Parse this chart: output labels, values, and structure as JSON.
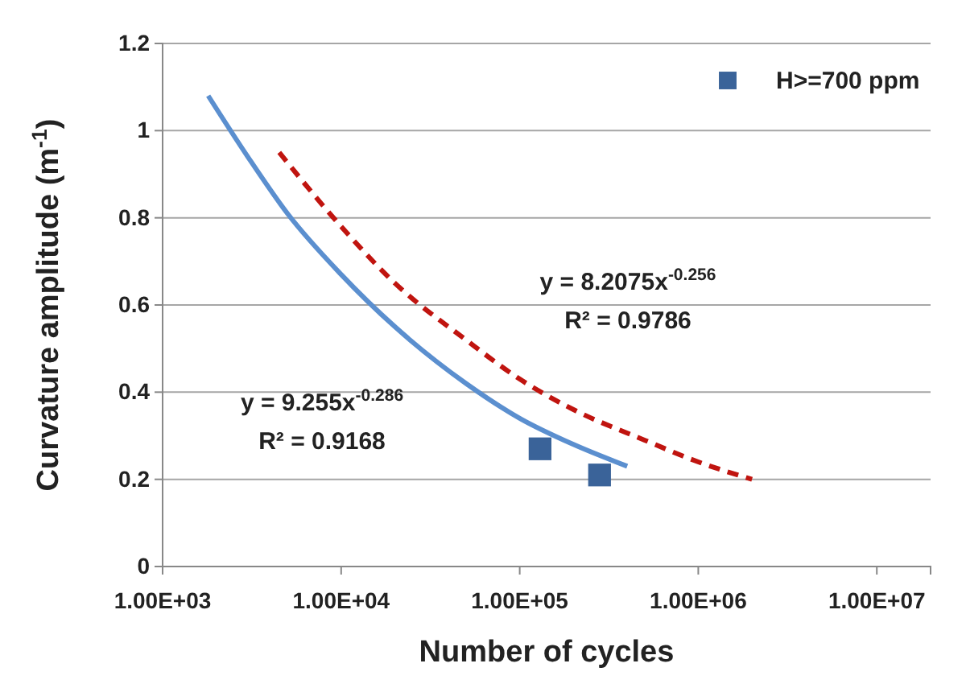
{
  "chart_data": {
    "type": "scatter",
    "xlabel": "Number of cycles",
    "ylabel": "Curvature amplitude (m$^{-1}$)",
    "log": "x",
    "xlim": [
      1000,
      20000000
    ],
    "xticks": [
      {
        "value": 1000,
        "label": "1.00E+03"
      },
      {
        "value": 10000,
        "label": "1.00E+04"
      },
      {
        "value": 100000,
        "label": "1.00E+05"
      },
      {
        "value": 1000000,
        "label": "1.00E+06"
      },
      {
        "value": 10000000,
        "label": "1.00E+07"
      }
    ],
    "ylim": [
      0,
      1.2
    ],
    "yticks": [
      0,
      0.2,
      0.4,
      0.6,
      0.8,
      1,
      1.2
    ],
    "grid": "y",
    "legend": "top right",
    "series": [
      {
        "name": "H>=700 ppm",
        "type": "scatter",
        "marker": "square",
        "color": "#3a6399",
        "x": [
          130000,
          280000
        ],
        "values": [
          0.27,
          0.21
        ]
      },
      {
        "type": "line",
        "marker": "none",
        "line_style": "solid",
        "color": "#5b8fcf",
        "x": [
          1800,
          3000,
          5000,
          10000,
          20000,
          50000,
          100000,
          200000,
          400000
        ],
        "values": [
          1.08,
          0.94,
          0.81,
          0.67,
          0.55,
          0.42,
          0.34,
          0.28,
          0.23
        ]
      },
      {
        "type": "line",
        "marker": "none",
        "line_style": "dashed",
        "color": "#c0140f",
        "x": [
          4500,
          10000,
          20000,
          50000,
          100000,
          200000,
          500000,
          1000000,
          2000000
        ],
        "values": [
          0.95,
          0.78,
          0.65,
          0.52,
          0.43,
          0.36,
          0.29,
          0.24,
          0.2
        ]
      }
    ],
    "annotations": [
      "y = 8.2075x$^{-0.256}$",
      "R² = 0.9786",
      "y = 9.255x$^{-0.286}$",
      "R² = 0.9168"
    ]
  }
}
